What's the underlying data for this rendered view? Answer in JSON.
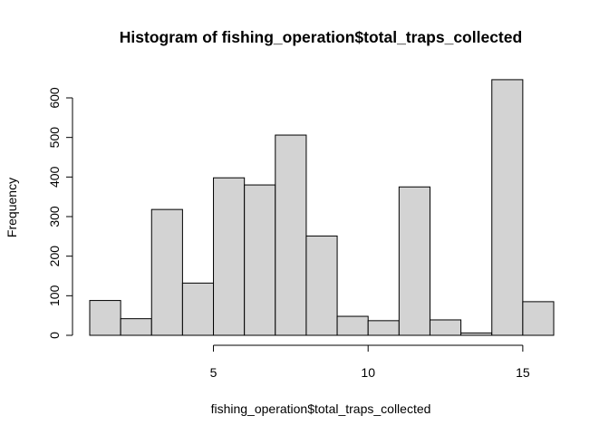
{
  "chart_data": {
    "type": "bar",
    "title": "Histogram of fishing_operation$total_traps_collected",
    "xlabel": "fishing_operation$total_traps_collected",
    "ylabel": "Frequency",
    "bins": [
      {
        "x0": 1,
        "x1": 2,
        "count": 88
      },
      {
        "x0": 2,
        "x1": 3,
        "count": 42
      },
      {
        "x0": 3,
        "x1": 4,
        "count": 318
      },
      {
        "x0": 4,
        "x1": 5,
        "count": 132
      },
      {
        "x0": 5,
        "x1": 6,
        "count": 398
      },
      {
        "x0": 6,
        "x1": 7,
        "count": 380
      },
      {
        "x0": 7,
        "x1": 8,
        "count": 506
      },
      {
        "x0": 8,
        "x1": 9,
        "count": 251
      },
      {
        "x0": 9,
        "x1": 10,
        "count": 48
      },
      {
        "x0": 10,
        "x1": 11,
        "count": 37
      },
      {
        "x0": 11,
        "x1": 12,
        "count": 375
      },
      {
        "x0": 12,
        "x1": 13,
        "count": 39
      },
      {
        "x0": 13,
        "x1": 14,
        "count": 6
      },
      {
        "x0": 14,
        "x1": 15,
        "count": 646
      },
      {
        "x0": 15,
        "x1": 16,
        "count": 85
      }
    ],
    "xlim": [
      1,
      16
    ],
    "ylim": [
      0,
      600
    ],
    "xticks": [
      5,
      10,
      15
    ],
    "yticks": [
      0,
      100,
      200,
      300,
      400,
      500,
      600
    ],
    "bar_fill": "#d3d3d3",
    "bar_stroke": "#000000",
    "grid": false,
    "legend": "none"
  }
}
